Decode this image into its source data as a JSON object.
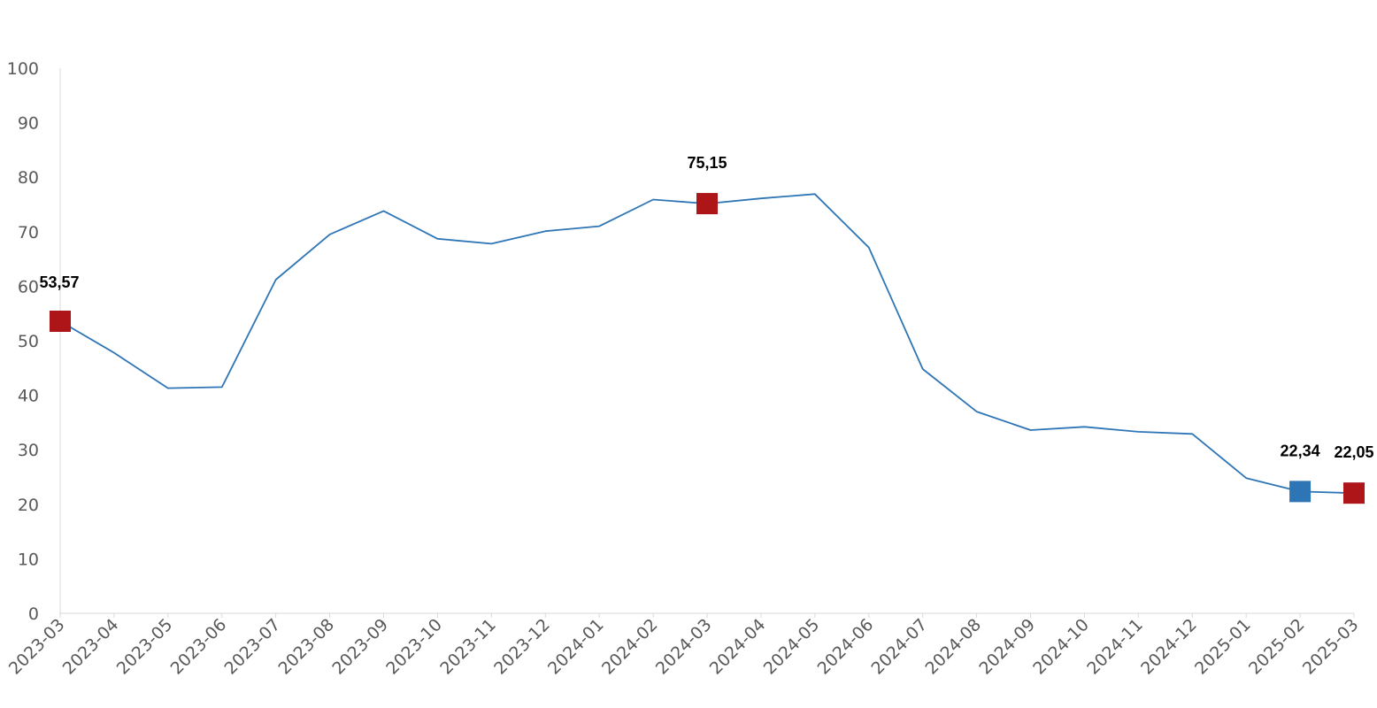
{
  "chart_data": {
    "type": "line",
    "title": "",
    "xlabel": "",
    "ylabel": "",
    "ylim": [
      0,
      100
    ],
    "yticks": [
      0,
      10,
      20,
      30,
      40,
      50,
      60,
      70,
      80,
      90,
      100
    ],
    "grid": false,
    "legend": "none",
    "x": [
      "2023-03",
      "2023-04",
      "2023-05",
      "2023-06",
      "2023-07",
      "2023-08",
      "2023-09",
      "2023-10",
      "2023-11",
      "2023-12",
      "2024-01",
      "2024-02",
      "2024-03",
      "2024-04",
      "2024-05",
      "2024-06",
      "2024-07",
      "2024-08",
      "2024-09",
      "2024-10",
      "2024-11",
      "2024-12",
      "2025-01",
      "2025-02",
      "2025-03"
    ],
    "series": [
      {
        "values": [
          53.57,
          47.8,
          41.3,
          41.5,
          61.2,
          69.5,
          73.8,
          68.7,
          67.8,
          70.1,
          71.0,
          75.9,
          75.15,
          76.1,
          76.9,
          67.1,
          44.8,
          37.0,
          33.6,
          34.2,
          33.3,
          32.9,
          24.8,
          22.34,
          22.05
        ],
        "color": "#2e75b6"
      }
    ],
    "highlights": [
      {
        "index": 0,
        "label": "53,57",
        "color": "#ad1519"
      },
      {
        "index": 12,
        "label": "75,15",
        "color": "#ad1519"
      },
      {
        "index": 23,
        "label": "22,34",
        "color": "#2e75b6"
      },
      {
        "index": 24,
        "label": "22,05",
        "color": "#ad1519"
      }
    ],
    "axis_color": "#d9d9d9"
  }
}
